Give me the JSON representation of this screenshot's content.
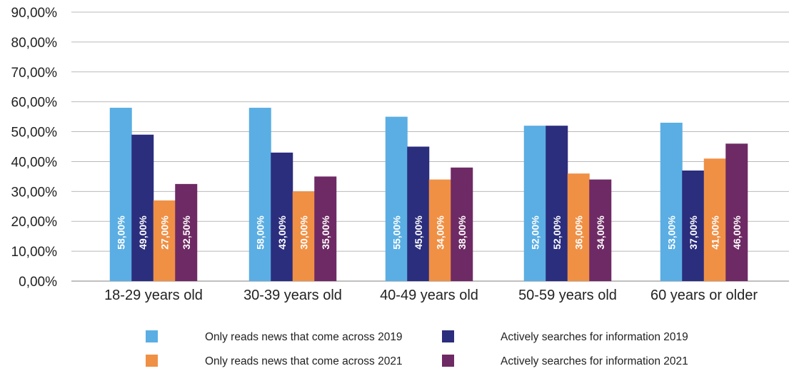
{
  "chart_data": {
    "type": "bar",
    "title": "",
    "xlabel": "",
    "ylabel": "",
    "ylim": [
      0,
      90
    ],
    "yticks": [
      "0,00%",
      "10,00%",
      "20,00%",
      "30,00%",
      "40,00%",
      "50,00%",
      "60,00%",
      "70,00%",
      "80,00%",
      "90,00%"
    ],
    "grid": true,
    "legend_position": "bottom",
    "categories": [
      "18-29 years old",
      "30-39 years old",
      "40-49 years old",
      "50-59 years old",
      "60 years or older"
    ],
    "series": [
      {
        "name": "Only reads news that come across 2019",
        "color": "#5aaee3",
        "values": [
          58,
          58,
          55,
          52,
          53
        ],
        "labels": [
          "58,00%",
          "58,00%",
          "55,00%",
          "52,00%",
          "53,00%"
        ]
      },
      {
        "name": "Actively searches for information 2019",
        "color": "#2b2d7d",
        "values": [
          49,
          43,
          45,
          52,
          37
        ],
        "labels": [
          "49,00%",
          "43,00%",
          "45,00%",
          "52,00%",
          "37,00%"
        ]
      },
      {
        "name": "Only reads news that come across 2021",
        "color": "#ef9045",
        "values": [
          27,
          30,
          34,
          36,
          41
        ],
        "labels": [
          "27,00%",
          "30,00%",
          "34,00%",
          "36,00%",
          "41,00%"
        ]
      },
      {
        "name": "Actively searches for information 2021",
        "color": "#6e2a64",
        "values": [
          32.5,
          35,
          38,
          34,
          46
        ],
        "labels": [
          "32,50%",
          "35,00%",
          "38,00%",
          "34,00%",
          "46,00%"
        ]
      }
    ]
  }
}
